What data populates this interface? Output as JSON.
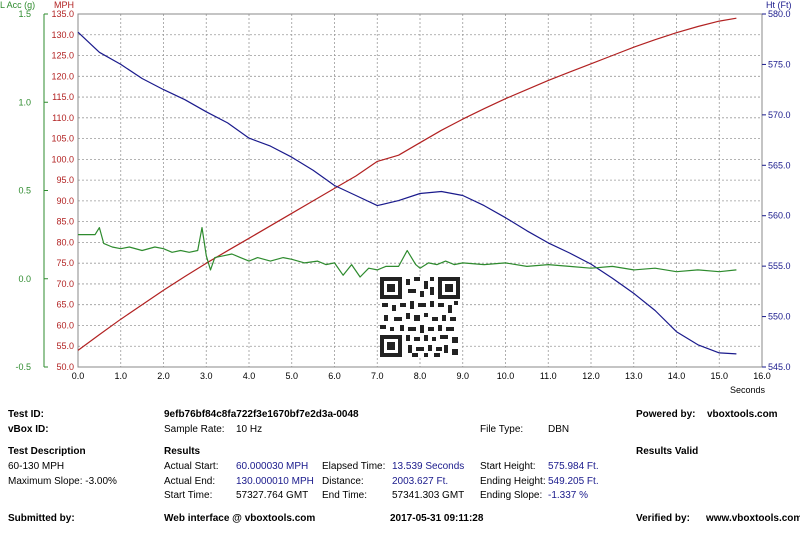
{
  "chart_data": {
    "type": "line",
    "x": {
      "label": "Seconds",
      "range": [
        0.0,
        16.0
      ],
      "ticks": [
        0.0,
        1.0,
        2.0,
        3.0,
        4.0,
        5.0,
        6.0,
        7.0,
        8.0,
        9.0,
        10.0,
        11.0,
        12.0,
        13.0,
        14.0,
        15.0,
        16.0
      ],
      "tick_labels": [
        "0.0",
        "1.0",
        "2.0",
        "3.0",
        "4.0",
        "5.0",
        "6.0",
        "7.0",
        "8.0",
        "9.0",
        "10.0",
        "11.0",
        "12.0",
        "13.0",
        "14.0",
        "15.0",
        "16.0"
      ]
    },
    "axes": {
      "lacc": {
        "label": "L Acc (g)",
        "range": [
          -0.5,
          1.5
        ],
        "ticks": [
          -0.5,
          0.0,
          0.5,
          1.0,
          1.5
        ],
        "tick_labels": [
          "-0.5",
          "0.0",
          "0.5",
          "1.0",
          "1.5"
        ],
        "color": "#2e8b2e"
      },
      "mph": {
        "label": "MPH",
        "range": [
          50.0,
          135.0
        ],
        "ticks": [
          50,
          55,
          60,
          65,
          70,
          75,
          80,
          85,
          90,
          95,
          100,
          105,
          110,
          115,
          120,
          125,
          130,
          135
        ],
        "tick_labels": [
          "50.0",
          "55.0",
          "60.0",
          "65.0",
          "70.0",
          "75.0",
          "80.0",
          "85.0",
          "90.0",
          "95.0",
          "100.0",
          "105.0",
          "110.0",
          "115.0",
          "120.0",
          "125.0",
          "130.0",
          "135.0"
        ],
        "color": "#b22222"
      },
      "ht": {
        "label": "Ht (Ft)",
        "range": [
          545.0,
          580.0
        ],
        "ticks": [
          545,
          550,
          555,
          560,
          565,
          570,
          575,
          580
        ],
        "tick_labels": [
          "545.0",
          "550.0",
          "555.0",
          "560.0",
          "565.0",
          "570.0",
          "575.0",
          "580.0"
        ],
        "color": "#1a1a8c"
      }
    },
    "grid": true,
    "series": [
      {
        "axis": "mph",
        "color": "#b22222",
        "points": [
          [
            0,
            54
          ],
          [
            0.5,
            57.8
          ],
          [
            1,
            61.5
          ],
          [
            1.5,
            65
          ],
          [
            2,
            68.5
          ],
          [
            2.5,
            71.8
          ],
          [
            3,
            75
          ],
          [
            3.5,
            78
          ],
          [
            4,
            81
          ],
          [
            4.5,
            84
          ],
          [
            5,
            87
          ],
          [
            5.5,
            90
          ],
          [
            6,
            93
          ],
          [
            6.5,
            96
          ],
          [
            7,
            99.5
          ],
          [
            7.5,
            101
          ],
          [
            8,
            104
          ],
          [
            8.5,
            107
          ],
          [
            9,
            109.7
          ],
          [
            9.5,
            112.2
          ],
          [
            10,
            114.6
          ],
          [
            10.5,
            116.8
          ],
          [
            11,
            119
          ],
          [
            11.5,
            121
          ],
          [
            12,
            123
          ],
          [
            12.5,
            125
          ],
          [
            13,
            127
          ],
          [
            13.5,
            128.8
          ],
          [
            14,
            130.5
          ],
          [
            14.5,
            132
          ],
          [
            15,
            133.3
          ],
          [
            15.4,
            134
          ]
        ]
      },
      {
        "axis": "ht",
        "color": "#1a1a8c",
        "points": [
          [
            0,
            578.2
          ],
          [
            0.5,
            576.2
          ],
          [
            1,
            575
          ],
          [
            1.5,
            573.6
          ],
          [
            2,
            572.5
          ],
          [
            2.5,
            571.5
          ],
          [
            3,
            570.3
          ],
          [
            3.5,
            569.2
          ],
          [
            4,
            567.7
          ],
          [
            4.5,
            566.9
          ],
          [
            5,
            565.8
          ],
          [
            5.5,
            564.5
          ],
          [
            6,
            563
          ],
          [
            6.5,
            562
          ],
          [
            7,
            561
          ],
          [
            7.5,
            561.5
          ],
          [
            8,
            562.2
          ],
          [
            8.5,
            562.4
          ],
          [
            9,
            562
          ],
          [
            9.5,
            561
          ],
          [
            10,
            559.8
          ],
          [
            10.5,
            558.5
          ],
          [
            11,
            557.3
          ],
          [
            11.5,
            556.3
          ],
          [
            12,
            555.2
          ],
          [
            12.5,
            553.8
          ],
          [
            13,
            552.3
          ],
          [
            13.5,
            550.6
          ],
          [
            14,
            548.5
          ],
          [
            14.5,
            547.2
          ],
          [
            15,
            546.4
          ],
          [
            15.4,
            546.3
          ]
        ]
      },
      {
        "axis": "lacc",
        "color": "#2e8b2e",
        "points": [
          [
            0,
            0.25
          ],
          [
            0.4,
            0.25
          ],
          [
            0.5,
            0.29
          ],
          [
            0.6,
            0.2
          ],
          [
            0.8,
            0.18
          ],
          [
            1,
            0.17
          ],
          [
            1.2,
            0.18
          ],
          [
            1.5,
            0.16
          ],
          [
            1.8,
            0.18
          ],
          [
            2,
            0.17
          ],
          [
            2.2,
            0.15
          ],
          [
            2.4,
            0.16
          ],
          [
            2.6,
            0.15
          ],
          [
            2.8,
            0.16
          ],
          [
            2.9,
            0.29
          ],
          [
            3,
            0.13
          ],
          [
            3.1,
            0.05
          ],
          [
            3.2,
            0.12
          ],
          [
            3.4,
            0.13
          ],
          [
            3.6,
            0.14
          ],
          [
            3.8,
            0.12
          ],
          [
            4,
            0.1
          ],
          [
            4.2,
            0.12
          ],
          [
            4.5,
            0.1
          ],
          [
            4.8,
            0.12
          ],
          [
            5,
            0.11
          ],
          [
            5.3,
            0.09
          ],
          [
            5.6,
            0.1
          ],
          [
            5.8,
            0.08
          ],
          [
            6,
            0.09
          ],
          [
            6.2,
            0.02
          ],
          [
            6.4,
            0.08
          ],
          [
            6.6,
            0.01
          ],
          [
            6.8,
            0.06
          ],
          [
            7,
            0.05
          ],
          [
            7.2,
            0.07
          ],
          [
            7.5,
            0.07
          ],
          [
            7.7,
            0.16
          ],
          [
            7.9,
            0.08
          ],
          [
            8,
            0.06
          ],
          [
            8.2,
            0.09
          ],
          [
            8.4,
            0.08
          ],
          [
            8.6,
            0.1
          ],
          [
            8.8,
            0.08
          ],
          [
            9,
            0.09
          ],
          [
            9.5,
            0.08
          ],
          [
            10,
            0.09
          ],
          [
            10.5,
            0.07
          ],
          [
            11,
            0.08
          ],
          [
            11.5,
            0.07
          ],
          [
            12,
            0.06
          ],
          [
            12.5,
            0.07
          ],
          [
            13,
            0.05
          ],
          [
            13.5,
            0.06
          ],
          [
            14,
            0.04
          ],
          [
            14.5,
            0.05
          ],
          [
            15,
            0.04
          ],
          [
            15.4,
            0.05
          ]
        ]
      }
    ]
  },
  "header": {
    "test_id_label": "Test ID:",
    "test_id_value": "9efb76bf84c8fa722f3e1670bf7e2d3a-0048",
    "powered_label": "Powered by:",
    "powered_value": "vboxtools.com",
    "vbox_id_label": "vBox ID:",
    "sample_rate_label": "Sample Rate:",
    "sample_rate_value": "10 Hz",
    "file_type_label": "File Type:",
    "file_type_value": "DBN"
  },
  "test_description": {
    "heading": "Test Description",
    "line1": "60-130 MPH",
    "line2": "Maximum Slope: -3.00%"
  },
  "results": {
    "heading": "Results",
    "valid_label": "Results Valid",
    "actual_start_label": "Actual Start:",
    "actual_start_value": "60.000030 MPH",
    "actual_end_label": "Actual End:",
    "actual_end_value": "130.000010 MPH",
    "start_time_label": "Start Time:",
    "start_time_value": "57327.764 GMT",
    "elapsed_label": "Elapsed Time:",
    "elapsed_value": "13.539 Seconds",
    "distance_label": "Distance:",
    "distance_value": "2003.627 Ft.",
    "end_time_label": "End Time:",
    "end_time_value": "57341.303 GMT",
    "start_height_label": "Start Height:",
    "start_height_value": "575.984 Ft.",
    "ending_height_label": "Ending Height:",
    "ending_height_value": "549.205 Ft.",
    "ending_slope_label": "Ending Slope:",
    "ending_slope_value": "-1.337 %"
  },
  "footer": {
    "submitted_label": "Submitted by:",
    "web_interface": "Web interface @ vboxtools.com",
    "timestamp": "2017-05-31 09:11:28",
    "verified_label": "Verified by:",
    "verified_value": "www.vboxtools.com"
  }
}
